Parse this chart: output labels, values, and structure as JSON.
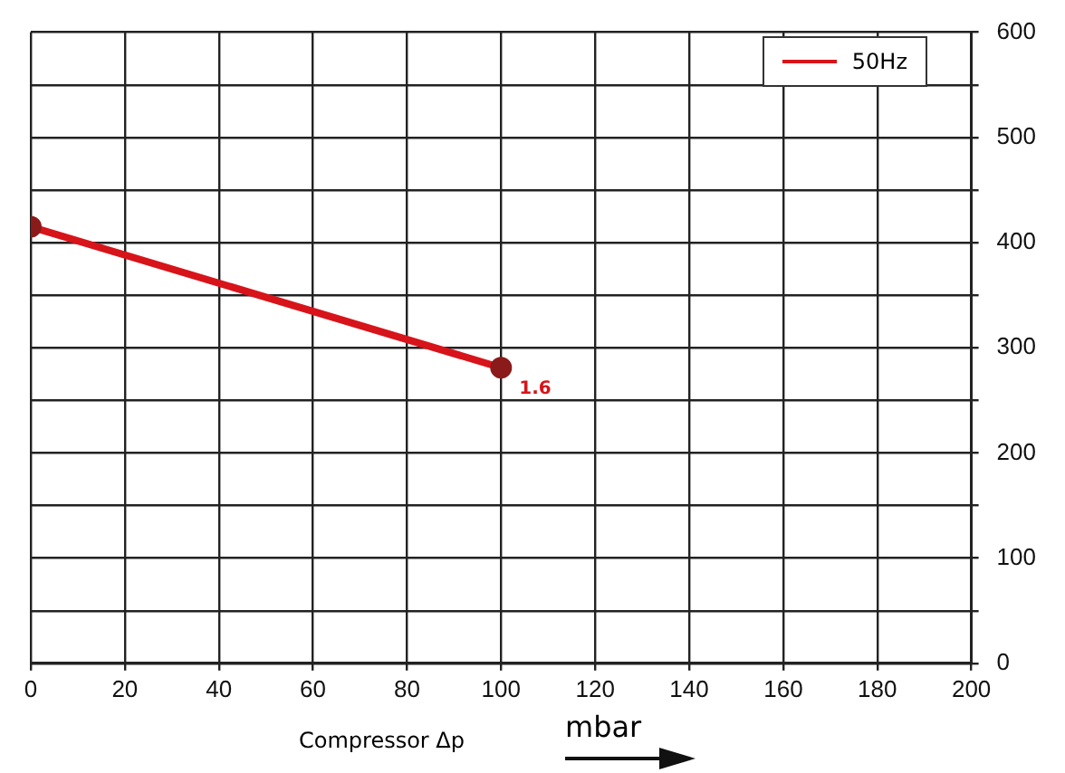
{
  "chart_data": {
    "type": "line",
    "xlabel": "Compressor Δp",
    "x": [
      0,
      100
    ],
    "series": [
      {
        "name": "50Hz",
        "color": "#d7141a",
        "values": [
          415,
          281
        ]
      }
    ],
    "xlim": [
      0,
      200
    ],
    "xticks": [
      0,
      20,
      40,
      60,
      80,
      100,
      120,
      140,
      160,
      180,
      200
    ],
    "ylim": [
      0,
      600
    ],
    "yticks": [
      0,
      {
        "value": 50,
        "label": null
      },
      100,
      {
        "value": 150,
        "label": null
      },
      200,
      {
        "value": 250,
        "label": null
      },
      300,
      {
        "value": 350,
        "label": null
      },
      400,
      {
        "value": 450,
        "label": null
      },
      500,
      {
        "value": 550,
        "label": null
      },
      600
    ],
    "annotations": [
      {
        "text": "1.6",
        "x": 100,
        "y": 281
      },
      "mbar"
    ],
    "grid": true,
    "legend": "top right",
    "marker": "circle",
    "line_style": "solid"
  }
}
